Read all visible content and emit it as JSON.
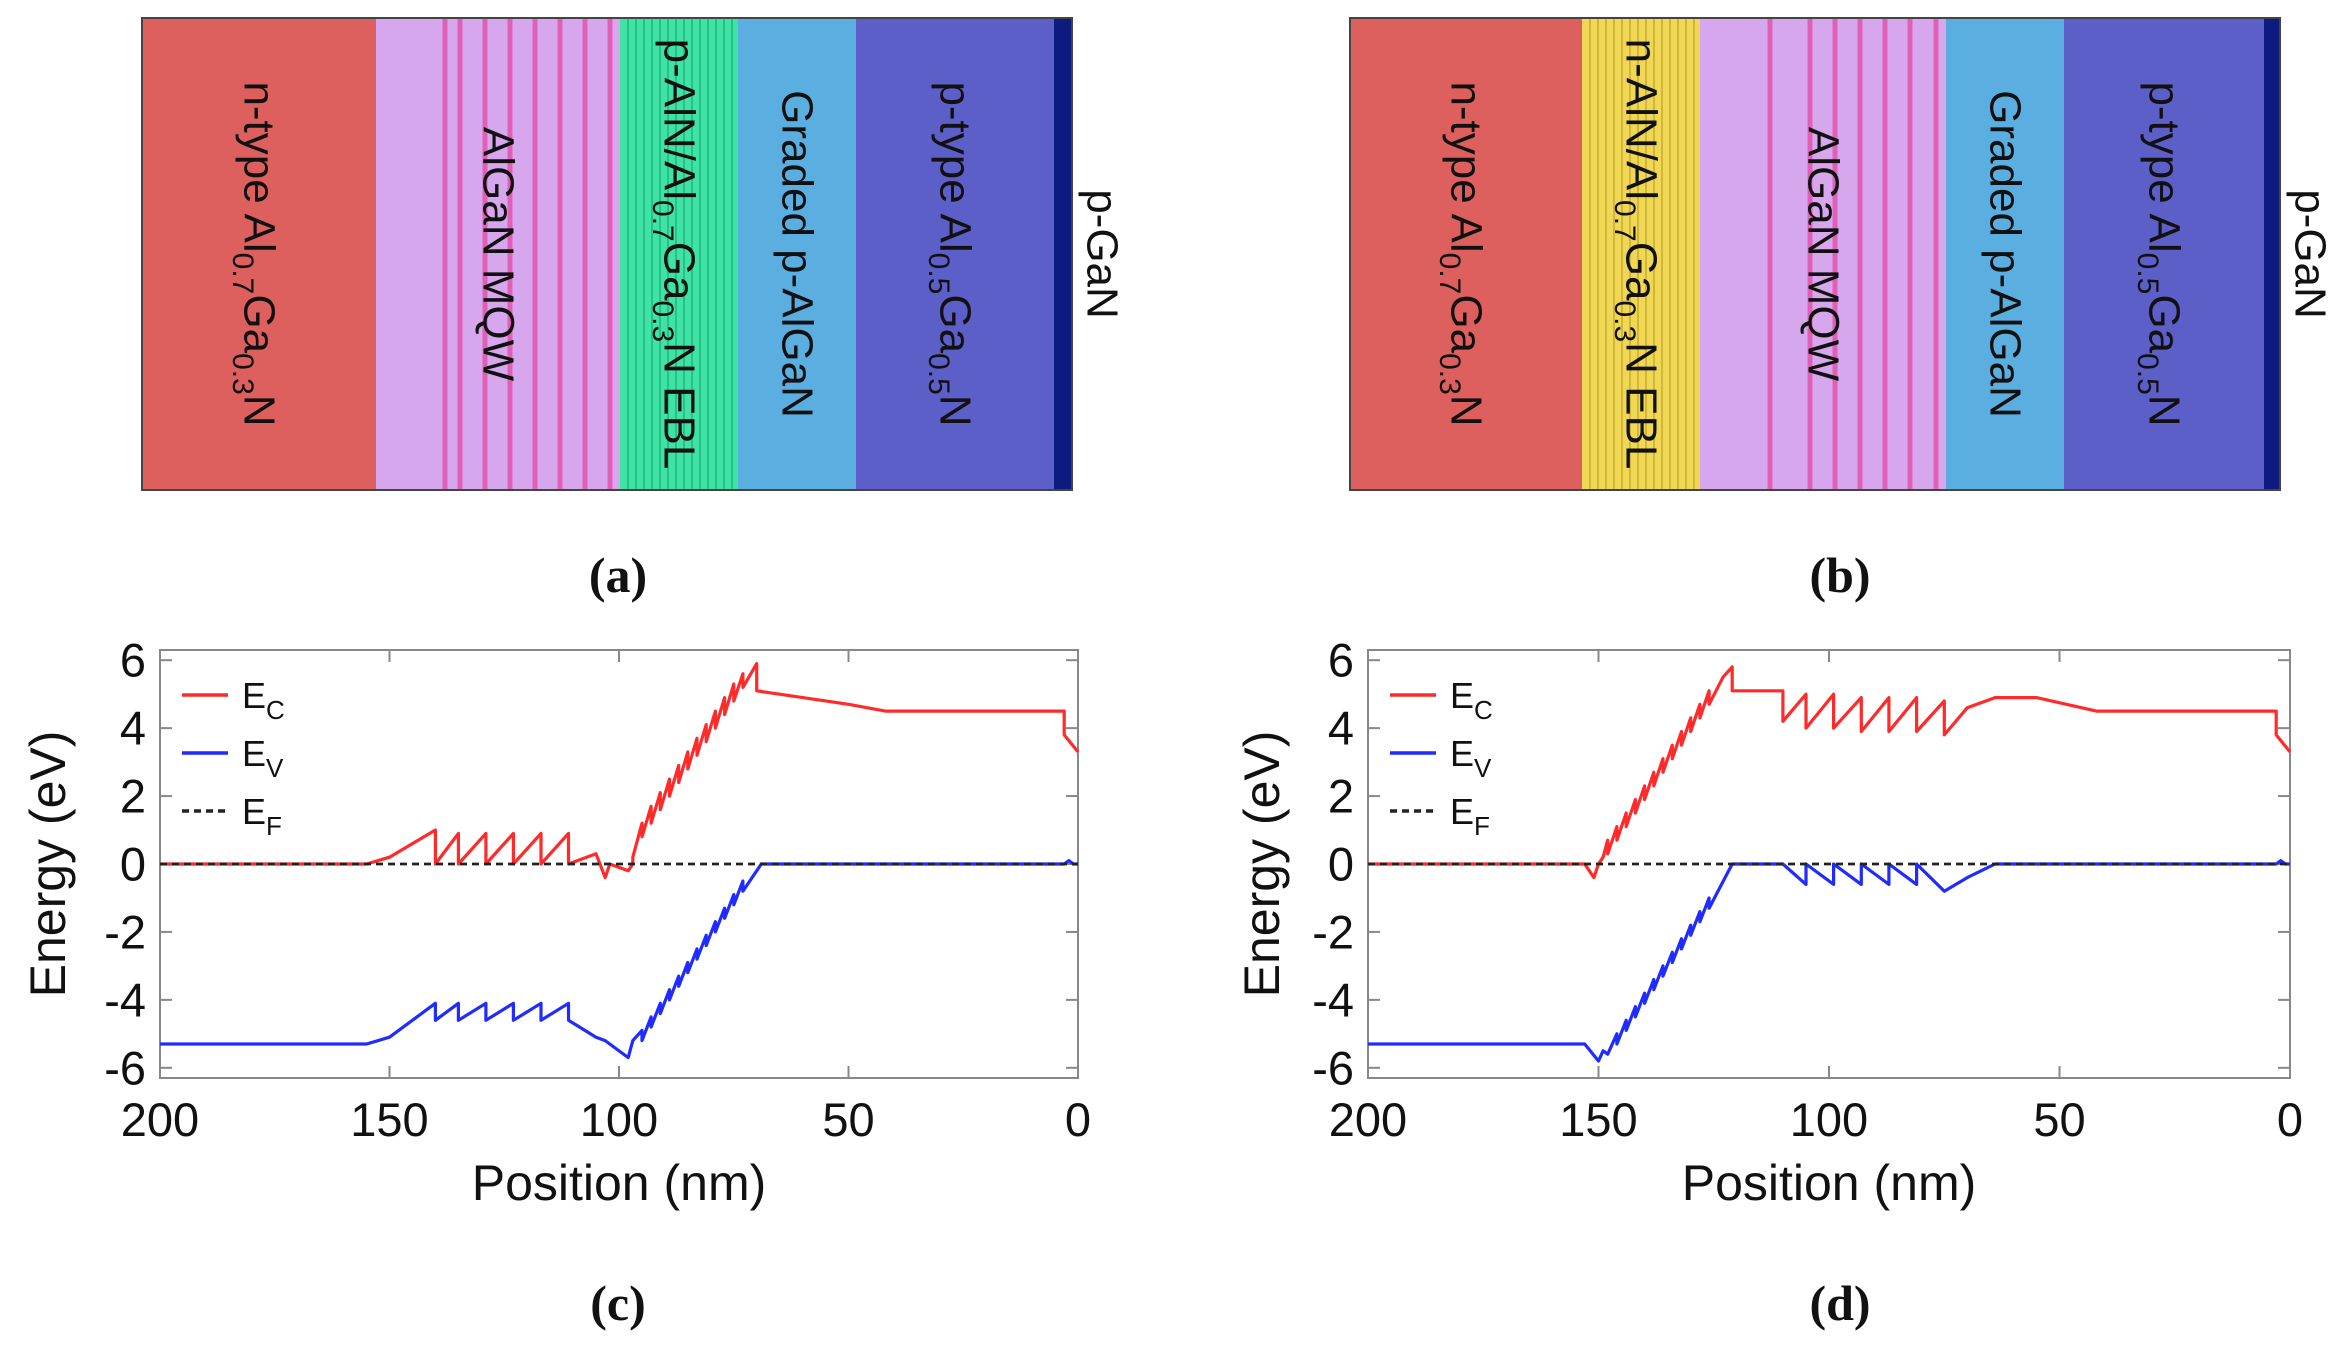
{
  "panel_labels": [
    "(a)",
    "(b)",
    "(c)",
    "(d)"
  ],
  "structure_a": {
    "layers": [
      {
        "name": "n-type-algan",
        "label": "n-type Al0.7Ga0.3N",
        "color": "#dd5f5e"
      },
      {
        "name": "algan-mqw",
        "label": "AlGaN MQW",
        "color": "#d7a7ee"
      },
      {
        "name": "ebl",
        "label": "p-AlN/Al0.7Ga0.3N EBL",
        "color": "#3fe3a5"
      },
      {
        "name": "graded-p-algan",
        "label": "Graded p-AlGaN",
        "color": "#5aaee0"
      },
      {
        "name": "p-type-algan",
        "label": "p-type Al0.5Ga0.5N",
        "color": "#5d5fc8"
      },
      {
        "name": "p-gan",
        "label": "p-GaN",
        "color": "#0d1a80"
      }
    ]
  },
  "structure_b": {
    "layers": [
      {
        "name": "n-type-algan",
        "label": "n-type Al0.7Ga0.3N",
        "color": "#dd5f5e"
      },
      {
        "name": "ebl",
        "label": "n-AlN/Al0.7Ga0.3N EBL",
        "color": "#f0d855"
      },
      {
        "name": "algan-mqw",
        "label": "AlGaN MQW",
        "color": "#d7a7ee"
      },
      {
        "name": "graded-p-algan",
        "label": "Graded p-AlGaN",
        "color": "#5aaee0"
      },
      {
        "name": "p-type-algan",
        "label": "p-type Al0.5Ga0.5N",
        "color": "#5d5fc8"
      },
      {
        "name": "p-gan",
        "label": "p-GaN",
        "color": "#0d1a80"
      }
    ]
  },
  "colors": {
    "ec": "#ff2b2b",
    "ev": "#1f2bff",
    "ef": "#222222",
    "mqw_line": "#e060b8"
  },
  "chart_data": [
    {
      "id": "c",
      "type": "line",
      "xlabel": "Position (nm)",
      "ylabel": "Energy (eV)",
      "xlim": [
        200,
        0
      ],
      "ylim": [
        -6.3,
        6.3
      ],
      "xticks": [
        200,
        150,
        100,
        50,
        0
      ],
      "yticks": [
        6,
        4,
        2,
        0,
        -2,
        -4,
        -6
      ],
      "legend": {
        "position": "top-left",
        "entries": [
          "EC",
          "EV",
          "EF"
        ]
      },
      "series": [
        {
          "name": "EC",
          "points": [
            [
              200,
              0
            ],
            [
              155,
              0
            ],
            [
              150,
              0.2
            ],
            [
              140,
              1.0
            ],
            [
              140,
              0
            ],
            [
              135,
              0.9
            ],
            [
              135,
              0
            ],
            [
              129,
              0.9
            ],
            [
              129,
              0
            ],
            [
              123,
              0.9
            ],
            [
              123,
              0
            ],
            [
              117,
              0.9
            ],
            [
              117,
              0
            ],
            [
              111,
              0.9
            ],
            [
              111,
              0
            ],
            [
              105,
              0.3
            ],
            [
              103,
              -0.4
            ],
            [
              102,
              0
            ],
            [
              98,
              -0.2
            ],
            [
              97,
              0
            ],
            [
              97,
              0.2
            ],
            [
              95,
              1.2
            ],
            [
              95,
              0.8
            ],
            [
              93,
              1.7
            ],
            [
              93,
              1.2
            ],
            [
              91,
              2.1
            ],
            [
              91,
              1.6
            ],
            [
              89,
              2.5
            ],
            [
              89,
              2.0
            ],
            [
              87,
              2.9
            ],
            [
              87,
              2.4
            ],
            [
              85,
              3.3
            ],
            [
              85,
              2.8
            ],
            [
              83,
              3.7
            ],
            [
              83,
              3.2
            ],
            [
              81,
              4.1
            ],
            [
              81,
              3.6
            ],
            [
              79,
              4.5
            ],
            [
              79,
              4.0
            ],
            [
              77,
              4.9
            ],
            [
              77,
              4.4
            ],
            [
              75,
              5.3
            ],
            [
              75,
              4.8
            ],
            [
              73,
              5.6
            ],
            [
              73,
              5.2
            ],
            [
              70,
              5.9
            ],
            [
              70,
              5.1
            ],
            [
              60,
              4.9
            ],
            [
              50,
              4.7
            ],
            [
              42,
              4.5
            ],
            [
              10,
              4.5
            ],
            [
              3,
              4.5
            ],
            [
              3,
              3.8
            ],
            [
              0,
              3.3
            ]
          ]
        },
        {
          "name": "EV",
          "points": [
            [
              200,
              -5.3
            ],
            [
              155,
              -5.3
            ],
            [
              150,
              -5.1
            ],
            [
              140,
              -4.1
            ],
            [
              140,
              -4.6
            ],
            [
              135,
              -4.1
            ],
            [
              135,
              -4.6
            ],
            [
              129,
              -4.1
            ],
            [
              129,
              -4.6
            ],
            [
              123,
              -4.1
            ],
            [
              123,
              -4.6
            ],
            [
              117,
              -4.1
            ],
            [
              117,
              -4.6
            ],
            [
              111,
              -4.1
            ],
            [
              111,
              -4.6
            ],
            [
              105,
              -5.1
            ],
            [
              103,
              -5.2
            ],
            [
              98,
              -5.7
            ],
            [
              97,
              -5.2
            ],
            [
              95,
              -4.9
            ],
            [
              95,
              -5.2
            ],
            [
              93,
              -4.5
            ],
            [
              93,
              -4.8
            ],
            [
              91,
              -4.1
            ],
            [
              91,
              -4.4
            ],
            [
              89,
              -3.7
            ],
            [
              89,
              -4.0
            ],
            [
              87,
              -3.3
            ],
            [
              87,
              -3.6
            ],
            [
              85,
              -2.9
            ],
            [
              85,
              -3.2
            ],
            [
              83,
              -2.5
            ],
            [
              83,
              -2.8
            ],
            [
              81,
              -2.1
            ],
            [
              81,
              -2.4
            ],
            [
              79,
              -1.7
            ],
            [
              79,
              -2.0
            ],
            [
              77,
              -1.3
            ],
            [
              77,
              -1.6
            ],
            [
              75,
              -0.9
            ],
            [
              75,
              -1.2
            ],
            [
              73,
              -0.5
            ],
            [
              73,
              -0.8
            ],
            [
              69,
              0
            ],
            [
              40,
              0
            ],
            [
              3,
              0
            ],
            [
              2,
              0.1
            ],
            [
              1,
              0
            ],
            [
              0,
              0
            ]
          ]
        },
        {
          "name": "EF",
          "points": [
            [
              200,
              0
            ],
            [
              0,
              0
            ]
          ]
        }
      ]
    },
    {
      "id": "d",
      "type": "line",
      "xlabel": "Position (nm)",
      "ylabel": "Energy (eV)",
      "xlim": [
        200,
        0
      ],
      "ylim": [
        -6.3,
        6.3
      ],
      "xticks": [
        200,
        150,
        100,
        50,
        0
      ],
      "yticks": [
        6,
        4,
        2,
        0,
        -2,
        -4,
        -6
      ],
      "legend": {
        "position": "top-left",
        "entries": [
          "EC",
          "EV",
          "EF"
        ]
      },
      "series": [
        {
          "name": "EC",
          "points": [
            [
              200,
              0
            ],
            [
              153,
              0
            ],
            [
              151,
              -0.4
            ],
            [
              150,
              0
            ],
            [
              149,
              0.2
            ],
            [
              148,
              0.7
            ],
            [
              148,
              0.3
            ],
            [
              146,
              1.1
            ],
            [
              146,
              0.7
            ],
            [
              144,
              1.5
            ],
            [
              144,
              1.1
            ],
            [
              142,
              1.9
            ],
            [
              142,
              1.5
            ],
            [
              140,
              2.3
            ],
            [
              140,
              1.9
            ],
            [
              138,
              2.7
            ],
            [
              138,
              2.3
            ],
            [
              136,
              3.1
            ],
            [
              136,
              2.7
            ],
            [
              134,
              3.5
            ],
            [
              134,
              3.1
            ],
            [
              132,
              3.9
            ],
            [
              132,
              3.5
            ],
            [
              130,
              4.3
            ],
            [
              130,
              3.9
            ],
            [
              128,
              4.7
            ],
            [
              128,
              4.3
            ],
            [
              126,
              5.1
            ],
            [
              126,
              4.7
            ],
            [
              123,
              5.5
            ],
            [
              121,
              5.8
            ],
            [
              121,
              5.1
            ],
            [
              110,
              5.1
            ],
            [
              110,
              4.2
            ],
            [
              105,
              5.0
            ],
            [
              105,
              4.0
            ],
            [
              99,
              5.0
            ],
            [
              99,
              4.0
            ],
            [
              93,
              4.9
            ],
            [
              93,
              3.9
            ],
            [
              87,
              4.9
            ],
            [
              87,
              3.9
            ],
            [
              81,
              4.9
            ],
            [
              81,
              3.9
            ],
            [
              75,
              4.8
            ],
            [
              75,
              3.8
            ],
            [
              70,
              4.6
            ],
            [
              64,
              4.9
            ],
            [
              55,
              4.9
            ],
            [
              42,
              4.5
            ],
            [
              3,
              4.5
            ],
            [
              3,
              3.8
            ],
            [
              0,
              3.3
            ]
          ]
        },
        {
          "name": "EV",
          "points": [
            [
              200,
              -5.3
            ],
            [
              153,
              -5.3
            ],
            [
              150,
              -5.8
            ],
            [
              149,
              -5.5
            ],
            [
              148,
              -5.6
            ],
            [
              146,
              -5.0
            ],
            [
              146,
              -5.3
            ],
            [
              144,
              -4.6
            ],
            [
              144,
              -4.9
            ],
            [
              142,
              -4.2
            ],
            [
              142,
              -4.5
            ],
            [
              140,
              -3.8
            ],
            [
              140,
              -4.1
            ],
            [
              138,
              -3.4
            ],
            [
              138,
              -3.7
            ],
            [
              136,
              -3.0
            ],
            [
              136,
              -3.3
            ],
            [
              134,
              -2.6
            ],
            [
              134,
              -2.9
            ],
            [
              132,
              -2.2
            ],
            [
              132,
              -2.5
            ],
            [
              130,
              -1.8
            ],
            [
              130,
              -2.1
            ],
            [
              128,
              -1.4
            ],
            [
              128,
              -1.7
            ],
            [
              126,
              -1.0
            ],
            [
              126,
              -1.3
            ],
            [
              121,
              0
            ],
            [
              110,
              0
            ],
            [
              105,
              -0.6
            ],
            [
              105,
              0
            ],
            [
              99,
              -0.6
            ],
            [
              99,
              0
            ],
            [
              93,
              -0.6
            ],
            [
              93,
              0
            ],
            [
              87,
              -0.6
            ],
            [
              87,
              0
            ],
            [
              81,
              -0.6
            ],
            [
              81,
              0
            ],
            [
              75,
              -0.8
            ],
            [
              70,
              -0.4
            ],
            [
              64,
              0
            ],
            [
              40,
              0
            ],
            [
              3,
              0
            ],
            [
              2,
              0.1
            ],
            [
              1,
              0
            ],
            [
              0,
              0
            ]
          ]
        },
        {
          "name": "EF",
          "points": [
            [
              200,
              0
            ],
            [
              0,
              0
            ]
          ]
        }
      ]
    }
  ]
}
